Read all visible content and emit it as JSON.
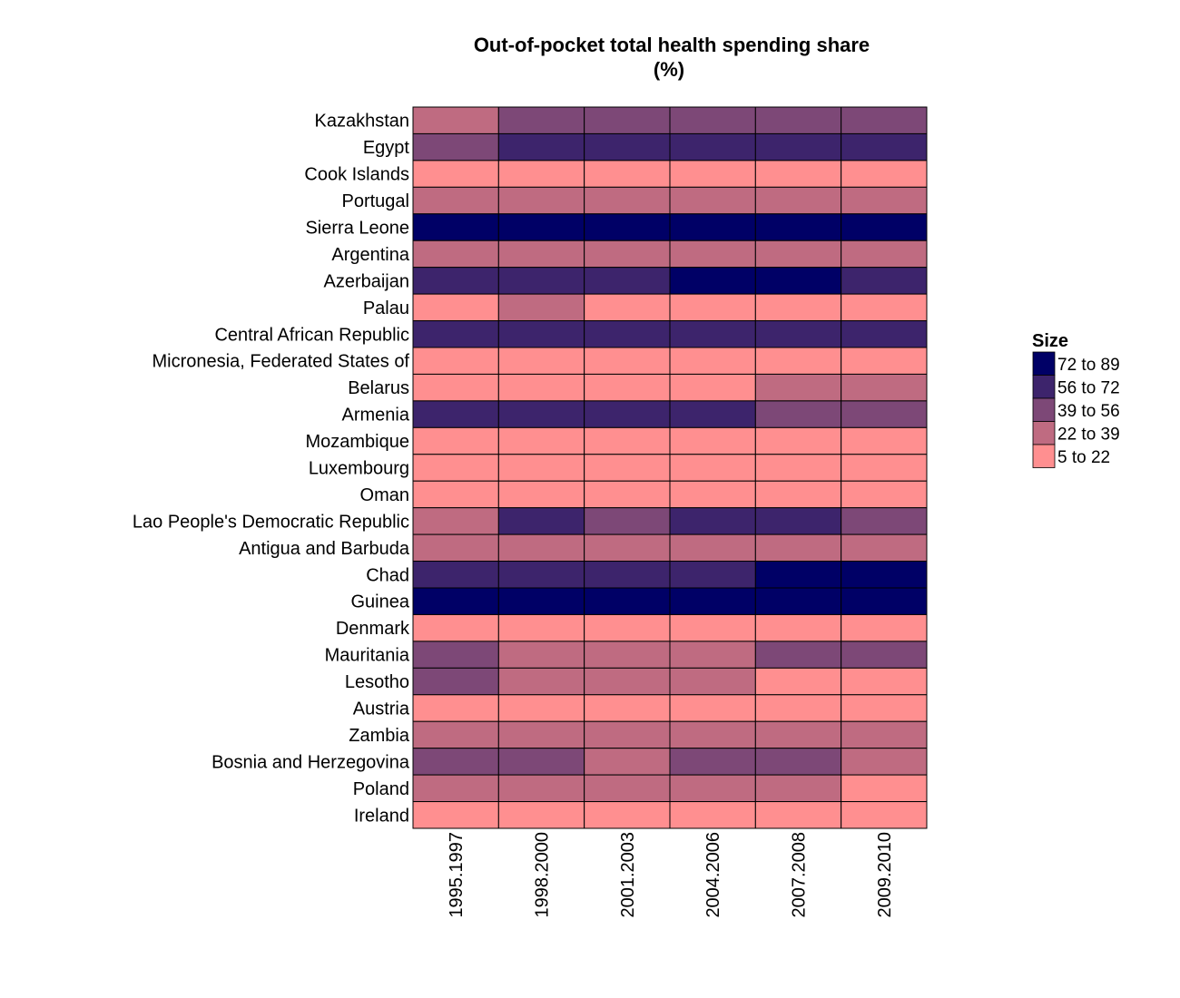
{
  "chart_data": {
    "type": "heatmap",
    "title": [
      "Out-of-pocket total health spending share",
      "(%)"
    ],
    "xlabel": "",
    "ylabel": "",
    "x": [
      "1995.1997",
      "1998.2000",
      "2001.2003",
      "2004.2006",
      "2007.2008",
      "2009.2010"
    ],
    "y": [
      "Kazakhstan",
      "Egypt",
      "Cook Islands",
      "Portugal",
      "Sierra Leone",
      "Argentina",
      "Azerbaijan",
      "Palau",
      "Central African Republic",
      "Micronesia, Federated States of",
      "Belarus",
      "Armenia",
      "Mozambique",
      "Luxembourg",
      "Oman",
      "Lao People's Democratic Republic",
      "Antigua and Barbuda",
      "Chad",
      "Guinea",
      "Denmark",
      "Mauritania",
      "Lesotho",
      "Austria",
      "Zambia",
      "Bosnia and Herzegovina",
      "Poland",
      "Ireland"
    ],
    "legend": {
      "title": "Size",
      "position": "right",
      "bins": [
        {
          "label": "72 to 89",
          "color": "#000066"
        },
        {
          "label": "56 to 72",
          "color": "#3d246c"
        },
        {
          "label": "39 to 56",
          "color": "#7d4877"
        },
        {
          "label": "22 to 39",
          "color": "#bf6b81"
        },
        {
          "label": "5 to 22",
          "color": "#ff8f90"
        }
      ]
    },
    "bin_index": [
      [
        3,
        2,
        2,
        2,
        2,
        2
      ],
      [
        2,
        1,
        1,
        1,
        1,
        1
      ],
      [
        4,
        4,
        4,
        4,
        4,
        4
      ],
      [
        3,
        3,
        3,
        3,
        3,
        3
      ],
      [
        0,
        0,
        0,
        0,
        0,
        0
      ],
      [
        3,
        3,
        3,
        3,
        3,
        3
      ],
      [
        1,
        1,
        1,
        0,
        0,
        1
      ],
      [
        4,
        3,
        4,
        4,
        4,
        4
      ],
      [
        1,
        1,
        1,
        1,
        1,
        1
      ],
      [
        4,
        4,
        4,
        4,
        4,
        4
      ],
      [
        4,
        4,
        4,
        4,
        3,
        3
      ],
      [
        1,
        1,
        1,
        1,
        2,
        2
      ],
      [
        4,
        4,
        4,
        4,
        4,
        4
      ],
      [
        4,
        4,
        4,
        4,
        4,
        4
      ],
      [
        4,
        4,
        4,
        4,
        4,
        4
      ],
      [
        3,
        1,
        2,
        1,
        1,
        2
      ],
      [
        3,
        3,
        3,
        3,
        3,
        3
      ],
      [
        1,
        1,
        1,
        1,
        0,
        0
      ],
      [
        0,
        0,
        0,
        0,
        0,
        0
      ],
      [
        4,
        4,
        4,
        4,
        4,
        4
      ],
      [
        2,
        3,
        3,
        3,
        2,
        2
      ],
      [
        2,
        3,
        3,
        3,
        4,
        4
      ],
      [
        4,
        4,
        4,
        4,
        4,
        4
      ],
      [
        3,
        3,
        3,
        3,
        3,
        3
      ],
      [
        2,
        2,
        3,
        2,
        2,
        3
      ],
      [
        3,
        3,
        3,
        3,
        3,
        4
      ],
      [
        4,
        4,
        4,
        4,
        4,
        4
      ]
    ]
  }
}
